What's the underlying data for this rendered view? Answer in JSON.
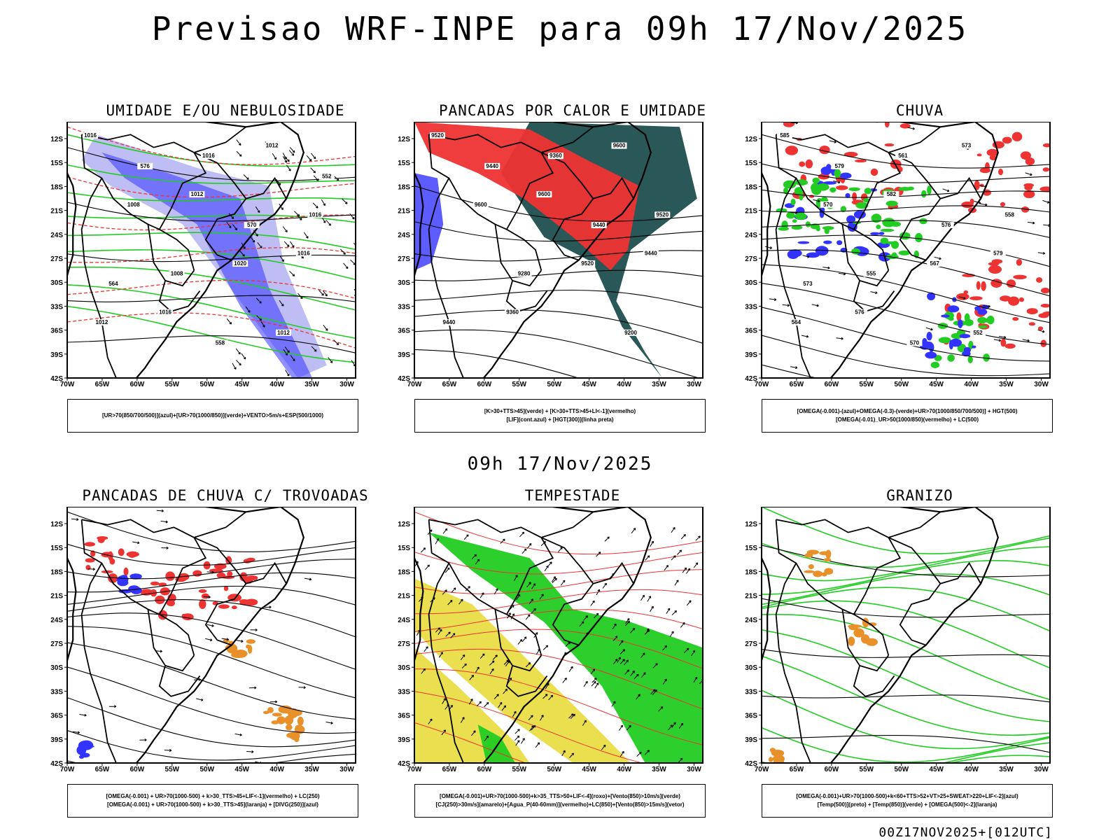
{
  "header": {
    "title": "Previsao WRF-INPE  para 09h 17/Nov/2025"
  },
  "mid_time": "09h 17/Nov/2025",
  "footer": "00Z17NOV2025+[012UTC]",
  "axes": {
    "lat_labels": [
      "12S",
      "15S",
      "18S",
      "21S",
      "24S",
      "27S",
      "30S",
      "33S",
      "36S",
      "39S",
      "42S"
    ],
    "lon_labels": [
      "70W",
      "65W",
      "60W",
      "55W",
      "50W",
      "45W",
      "40W",
      "35W",
      "30W"
    ]
  },
  "colors": {
    "blue": "#3333ff",
    "lightblue": "#a8a8f0",
    "green": "#22cc22",
    "red": "#ee3333",
    "darkteal": "#1f4f4f",
    "orange": "#e8902a",
    "yellow": "#e8dc3c",
    "black": "#000000"
  },
  "panels": [
    {
      "id": "umidade",
      "title": "UMIDADE E/OU NEBULOSIDADE",
      "legend": [
        "[UR>70(850/700/500)](azul)+[UR>70(1000/850)](verde)+VENTO>5m/s+ESP(500/1000)"
      ],
      "contour_labels": [
        "1016",
        "1012",
        "1016",
        "1016",
        "1012",
        "1008",
        "1020",
        "1012",
        "1016",
        "1016",
        "1008",
        "1012",
        "576",
        "570",
        "564",
        "558",
        "552"
      ]
    },
    {
      "id": "pancadas-calor",
      "title": "PANCADAS POR CALOR E UMIDADE",
      "legend": [
        "[K>30+TTS>45](verde) + [K>30+TTS>45+LI<-1](vermelho)",
        "[LIF](cont.azul) + [HGT(300)](linha preta)"
      ],
      "contour_labels": [
        "9520",
        "9600",
        "9440",
        "9360",
        "9600",
        "9600",
        "9520",
        "9440",
        "9360",
        "9520",
        "9280",
        "9200",
        "9440",
        "9440"
      ]
    },
    {
      "id": "chuva",
      "title": "CHUVA",
      "legend": [
        "[OMEGA(-0.001)-(azul)+OMEGA(-0.3)-(verde)+UR>70(1000/850/700/500)] + HGT(500)",
        "[OMEGA(-0.01)_UR>50(1000/850)(vermelho) + LC(500)"
      ],
      "contour_labels": [
        "585",
        "582",
        "579",
        "576",
        "573",
        "570",
        "567",
        "564",
        "561",
        "558",
        "555",
        "552",
        "579",
        "576",
        "573",
        "570"
      ]
    },
    {
      "id": "pancadas-trovoadas",
      "title": "PANCADAS DE CHUVA C/ TROVOADAS",
      "legend": [
        "[OMEGA(-0.001) + UR>70(1000-500) + k>30_TTS>45+LIF<-1](vermelho) + LC(250)",
        "[OMEGA(-0.001) + UR>70(1000-500) + k>30_TTS>45](laranja) + [DIVG(250)](azul)"
      ],
      "contour_labels": []
    },
    {
      "id": "tempestade",
      "title": "TEMPESTADE",
      "legend": [
        "[OMEGA(-0.001)+UR>70(1000-500)+k>35_TTS>50+LIF<-4](roxo)+[Vento(850)>10m/s](verde)",
        "[CJ(250)>30m/s](amarelo)+[Agua_P(40-60mm)](vermelho)+LC(850)+[Vento(850)>15m/s](vetor)"
      ],
      "contour_labels": []
    },
    {
      "id": "granizo",
      "title": "GRANIZO",
      "legend": [
        "[OMEGA(-0.001)+UR>70(1000-500)+k<60+TTS>52+VT>25+SWEAT>220+LIF<-2](azul)",
        "[Temp(500)](preto) + [Temp(850)](verde) + [OMEGA(500)<-2](laranja)"
      ],
      "contour_labels": []
    }
  ]
}
